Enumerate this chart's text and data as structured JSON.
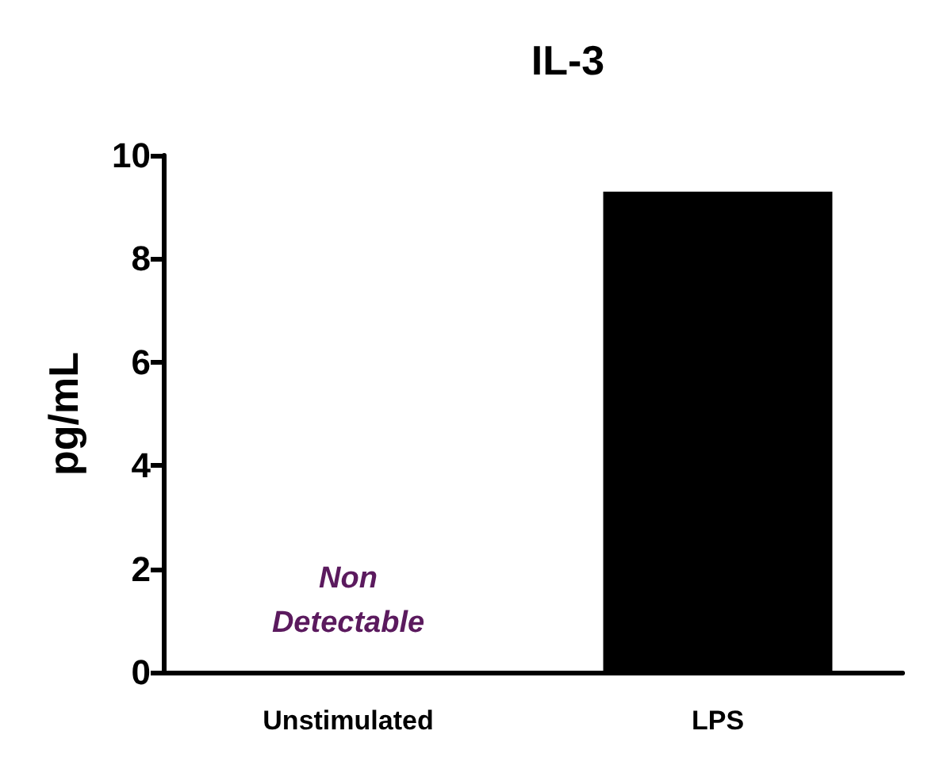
{
  "chart_data": {
    "type": "bar",
    "title": "IL-3",
    "ylabel": "pg/mL",
    "categories": [
      "Unstimulated",
      "LPS"
    ],
    "values": [
      null,
      9.3
    ],
    "color": "#000000",
    "ylim": [
      0,
      10
    ],
    "yticks": [
      0,
      2,
      4,
      6,
      8,
      10
    ],
    "grid": false,
    "annotations": [
      "Non\nDetectable"
    ]
  }
}
